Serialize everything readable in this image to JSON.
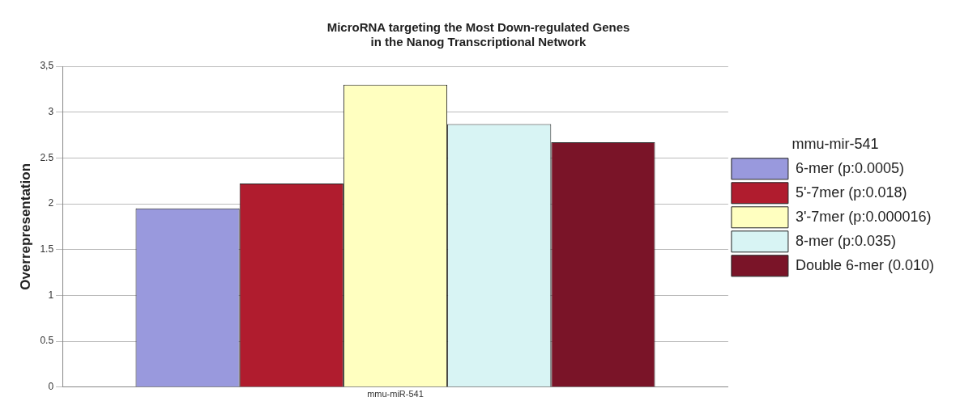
{
  "chart_data": {
    "type": "bar",
    "title": "MicroRNA targeting the Most Down-regulated Genes\nin the Nanog Transcriptional Network",
    "ylabel": "Overrepresentation",
    "legend_title": "mmu-mir-541",
    "categories": [
      "mmu-miR-541"
    ],
    "series": [
      {
        "name": "6-mer (p:0.0005)",
        "color": "#9999dd",
        "values": [
          1.95
        ]
      },
      {
        "name": "5'-7mer (p:0.018)",
        "color": "#b01c2e",
        "values": [
          2.22
        ]
      },
      {
        "name": "3'-7mer (p:0.000016)",
        "color": "#ffffc0",
        "values": [
          3.3
        ]
      },
      {
        "name": "8-mer (p:0.035)",
        "color": "#d8f4f4",
        "values": [
          2.87
        ]
      },
      {
        "name": "Double 6-mer (0.010)",
        "color": "#7a1428",
        "values": [
          2.67
        ]
      }
    ],
    "ylim": [
      0,
      3.5
    ],
    "yticks": [
      0,
      0.5,
      1,
      1.5,
      2,
      2.5,
      3,
      {
        "value": 3.5,
        "label": "3,5"
      }
    ],
    "grid": "y",
    "legend": "right"
  }
}
